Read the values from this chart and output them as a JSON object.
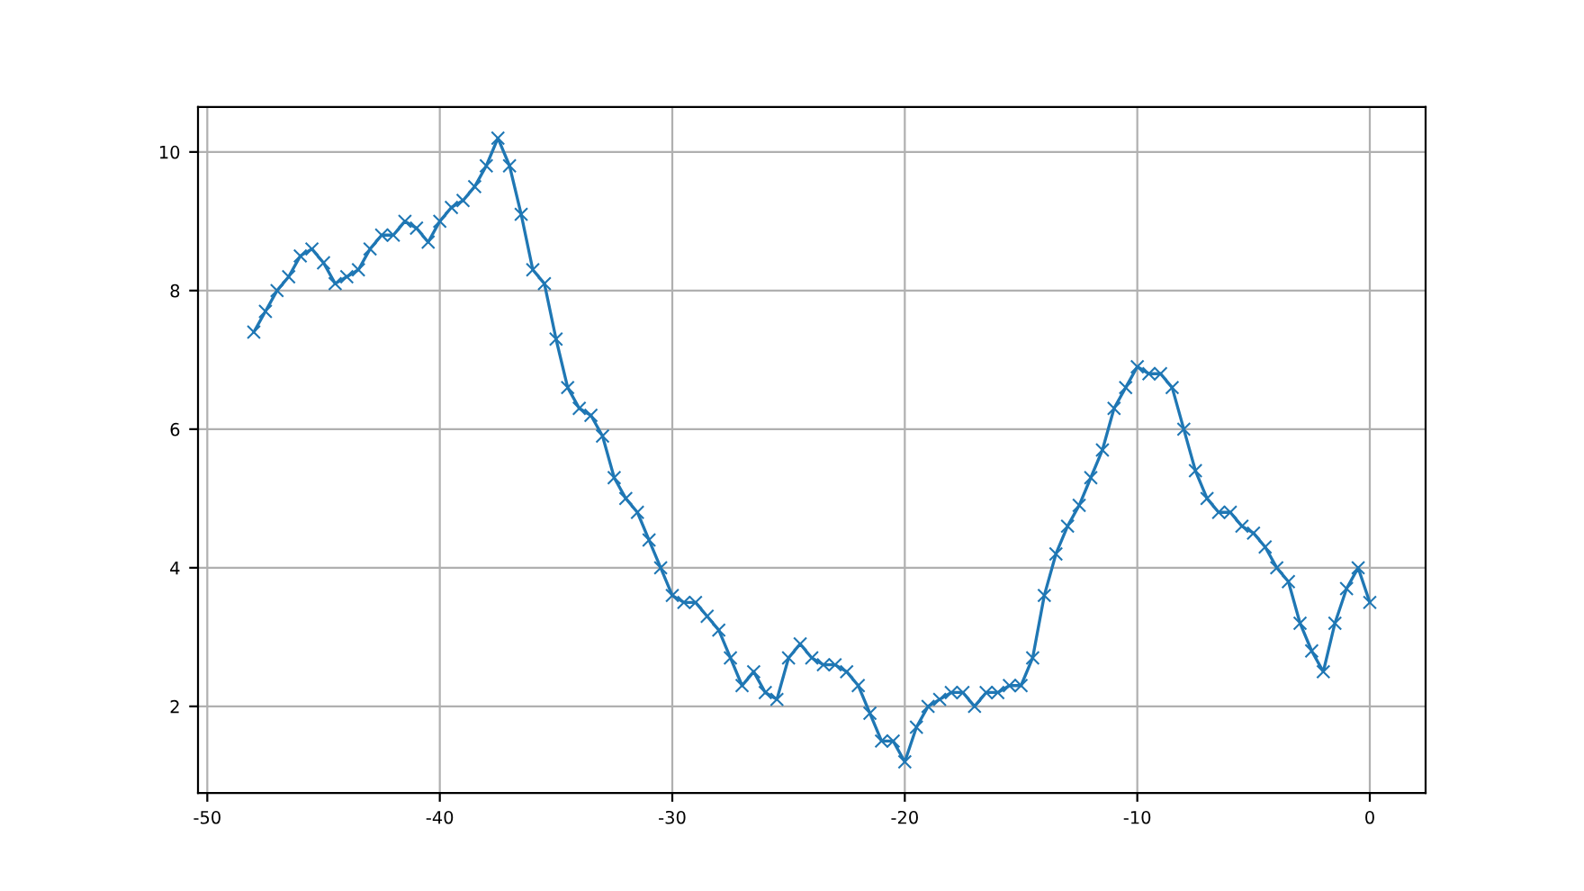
{
  "chart_data": {
    "type": "line",
    "x": [
      -48,
      -47.5,
      -47,
      -46.5,
      -46,
      -45.5,
      -45,
      -44.5,
      -44,
      -43.5,
      -43,
      -42.5,
      -42,
      -41.5,
      -41,
      -40.5,
      -40,
      -39.5,
      -39,
      -38.5,
      -38,
      -37.5,
      -37,
      -36.5,
      -36,
      -35.5,
      -35,
      -34.5,
      -34,
      -33.5,
      -33,
      -32.5,
      -32,
      -31.5,
      -31,
      -30.5,
      -30,
      -29.5,
      -29,
      -28.5,
      -28,
      -27.5,
      -27,
      -26.5,
      -26,
      -25.5,
      -25,
      -24.5,
      -24,
      -23.5,
      -23,
      -22.5,
      -22,
      -21.5,
      -21,
      -20.5,
      -20,
      -19.5,
      -19,
      -18.5,
      -18,
      -17.5,
      -17,
      -16.5,
      -16,
      -15.5,
      -15,
      -14.5,
      -14,
      -13.5,
      -13,
      -12.5,
      -12,
      -11.5,
      -11,
      -10.5,
      -10,
      -9.5,
      -9,
      -8.5,
      -8,
      -7.5,
      -7,
      -6.5,
      -6,
      -5.5,
      -5,
      -4.5,
      -4,
      -3.5,
      -3,
      -2.5,
      -2,
      -1.5,
      -1,
      -0.5,
      0
    ],
    "series": [
      {
        "color": "#1f77b4",
        "values": [
          7.4,
          7.7,
          8.0,
          8.2,
          8.5,
          8.6,
          8.4,
          8.1,
          8.2,
          8.3,
          8.6,
          8.8,
          8.8,
          9.0,
          8.9,
          8.7,
          9.0,
          9.2,
          9.3,
          9.5,
          9.8,
          10.2,
          9.8,
          9.1,
          8.3,
          8.1,
          7.3,
          6.6,
          6.3,
          6.2,
          5.9,
          5.3,
          5.0,
          4.8,
          4.4,
          4.0,
          3.6,
          3.5,
          3.5,
          3.3,
          3.1,
          2.7,
          2.3,
          2.5,
          2.2,
          2.1,
          2.7,
          2.9,
          2.7,
          2.6,
          2.6,
          2.5,
          2.3,
          1.9,
          1.5,
          1.5,
          1.2,
          1.7,
          2.0,
          2.1,
          2.2,
          2.2,
          2.0,
          2.2,
          2.2,
          2.3,
          2.3,
          2.7,
          3.6,
          4.2,
          4.6,
          4.9,
          5.3,
          5.7,
          6.3,
          6.6,
          6.9,
          6.8,
          6.8,
          6.6,
          6.0,
          5.4,
          5.0,
          4.8,
          4.8,
          4.6,
          4.5,
          4.3,
          4.0,
          3.8,
          3.2,
          2.8,
          2.5,
          3.2,
          3.7,
          4.0,
          3.5
        ]
      }
    ],
    "xlim": [
      -50.4,
      2.4
    ],
    "ylim": [
      0.75,
      10.65
    ],
    "xticks": [
      -50,
      -40,
      -30,
      -20,
      -10,
      0
    ],
    "yticks": [
      2,
      4,
      6,
      8,
      10
    ],
    "grid": true,
    "marker": "cross",
    "line_style": "solid"
  }
}
